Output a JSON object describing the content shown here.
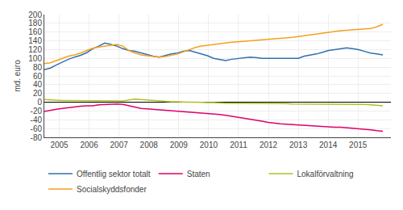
{
  "chart_data": {
    "type": "line",
    "ylabel": "md. euro",
    "x": [
      2004.5,
      2004.702321,
      2004.904643,
      2005.106964,
      2005.309286,
      2005.511607,
      2005.713929,
      2005.91625,
      2006.118571,
      2006.320893,
      2006.523214,
      2006.725536,
      2006.927857,
      2007.130179,
      2007.3325,
      2007.534821,
      2007.737143,
      2007.939464,
      2008.141786,
      2008.344107,
      2008.546429,
      2008.74875,
      2008.951071,
      2009.153393,
      2009.355714,
      2009.558036,
      2009.760357,
      2009.962679,
      2010.165,
      2010.367321,
      2010.569643,
      2010.771964,
      2010.974286,
      2011.176607,
      2011.378929,
      2011.58125,
      2011.783571,
      2011.985893,
      2012.188214,
      2012.390536,
      2012.592857,
      2012.795179,
      2012.9975,
      2013.199821,
      2013.402143,
      2013.604464,
      2013.806786,
      2014.009107,
      2014.211429,
      2014.41375,
      2014.616071,
      2014.818393,
      2015.020714,
      2015.223036,
      2015.425357,
      2015.627679,
      2015.83
    ],
    "series": [
      {
        "name": "Offentlig sektor totalt",
        "color": "#3070b0",
        "values": [
          74,
          78,
          85,
          92,
          98,
          103,
          107,
          113,
          122,
          128,
          135,
          132,
          128,
          122,
          118,
          116,
          112,
          108,
          105,
          103,
          107,
          110,
          112,
          116,
          118,
          114,
          110,
          106,
          100,
          97,
          95,
          98,
          100,
          102,
          103,
          102,
          100,
          100,
          100,
          100,
          100,
          100,
          100,
          105,
          107,
          110,
          114,
          118,
          120,
          122,
          124,
          122,
          120,
          116,
          112,
          110,
          108
        ]
      },
      {
        "name": "Staten",
        "color": "#e0006a",
        "values": [
          -21,
          -18,
          -16,
          -14,
          -12,
          -10,
          -9,
          -8,
          -8,
          -6,
          -5,
          -4,
          -4,
          -5,
          -8,
          -12,
          -14,
          -15,
          -16,
          -17,
          -18,
          -19,
          -20,
          -21,
          -22,
          -24,
          -25,
          -26,
          -27,
          -28,
          -30,
          -32,
          -34,
          -36,
          -38,
          -40,
          -43,
          -46,
          -48,
          -49,
          -50,
          -51,
          -52,
          -52,
          -53,
          -54,
          -55,
          -56,
          -57,
          -57,
          -58,
          -59,
          -60,
          -61,
          -63,
          -65,
          -66
        ]
      },
      {
        "name": "Lokalförvaltning",
        "color": "#b0c020",
        "values": [
          6,
          5,
          5,
          4,
          4,
          4,
          3,
          3,
          3,
          3,
          3,
          3,
          3,
          3,
          5,
          7,
          6,
          5,
          3,
          2,
          1,
          1,
          1,
          0,
          0,
          0,
          -1,
          -1,
          -1,
          -2,
          -2,
          -2,
          -2,
          -2,
          -2,
          -2,
          -2,
          -3,
          -3,
          -3,
          -3,
          -4,
          -4,
          -4,
          -4,
          -4,
          -4,
          -4,
          -4,
          -4,
          -4,
          -5,
          -5,
          -5,
          -6,
          -7,
          -8
        ]
      },
      {
        "name": "Socialskyddsfonder",
        "color": "#f5a020",
        "values": [
          88,
          90,
          95,
          100,
          105,
          108,
          112,
          118,
          123,
          126,
          128,
          130,
          132,
          128,
          118,
          112,
          108,
          106,
          104,
          103,
          104,
          107,
          110,
          115,
          120,
          125,
          128,
          130,
          132,
          134,
          136,
          137,
          138,
          139,
          140,
          141,
          142,
          143,
          144,
          145,
          146,
          148,
          150,
          152,
          154,
          156,
          158,
          160,
          162,
          163,
          164,
          165,
          166,
          167,
          168,
          172,
          178
        ]
      }
    ],
    "xlim": [
      2004.5,
      2016.1
    ],
    "xticks": [
      2005,
      2006,
      2007,
      2008,
      2009,
      2010,
      2011,
      2012,
      2013,
      2014,
      2015
    ],
    "ylim": [
      -80,
      200
    ],
    "yticks": [
      -80,
      -60,
      -40,
      -20,
      0,
      20,
      40,
      60,
      80,
      100,
      120,
      140,
      160,
      180,
      200
    ],
    "grid": true,
    "legend": "bottom"
  }
}
